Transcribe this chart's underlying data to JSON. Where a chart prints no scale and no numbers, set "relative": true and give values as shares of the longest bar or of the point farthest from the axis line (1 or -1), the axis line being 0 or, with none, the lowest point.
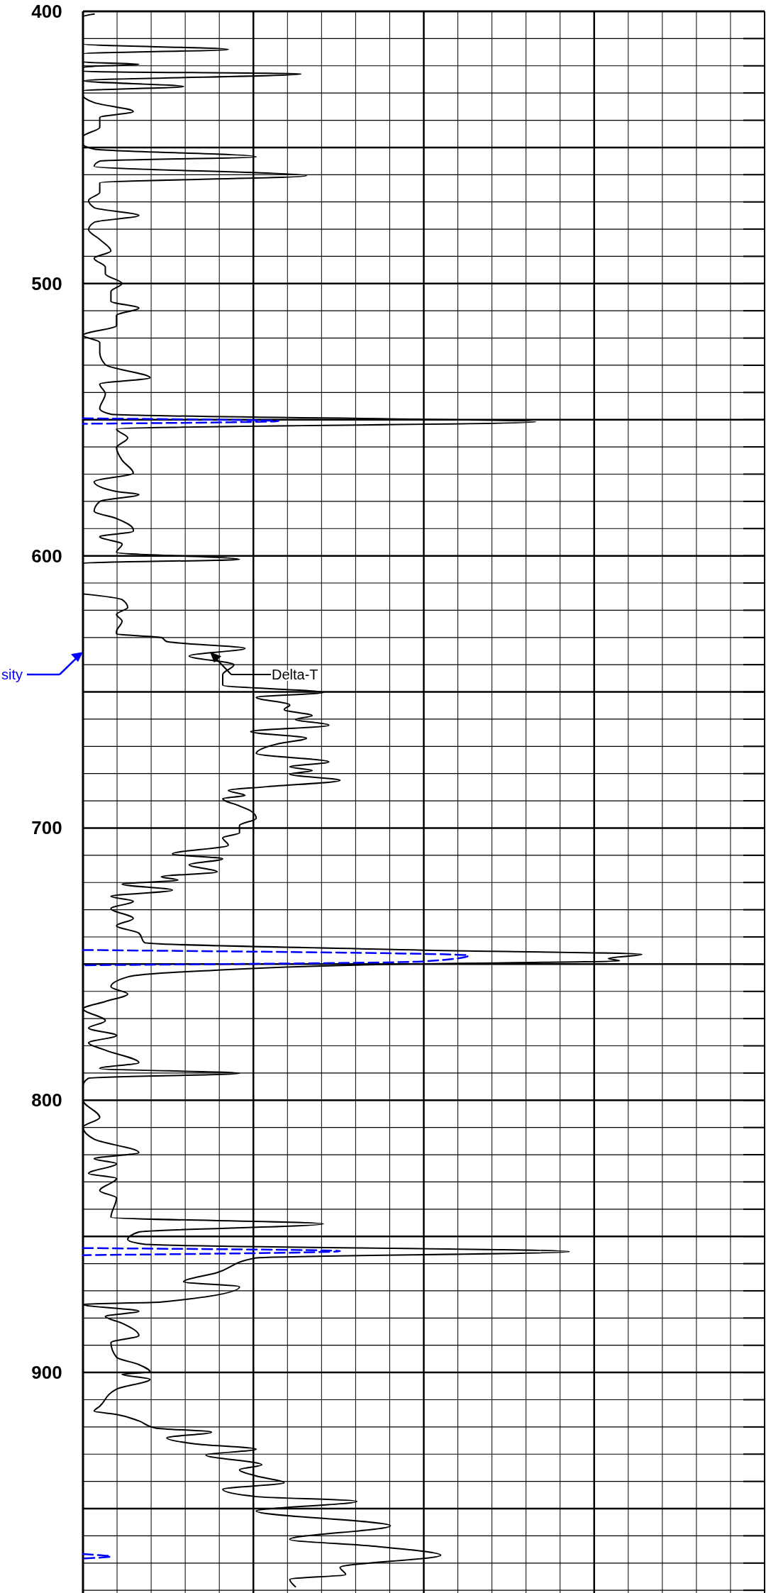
{
  "chart_data": {
    "type": "line",
    "orientation": "horizontal",
    "relative": true,
    "grid": true,
    "ylim": [
      981,
      400
    ],
    "yticks": [
      400,
      {
        "value": 410,
        "label": null
      },
      {
        "value": 420,
        "label": null
      },
      {
        "value": 430,
        "label": null
      },
      {
        "value": 440,
        "label": null
      },
      {
        "value": 450,
        "label": null
      },
      {
        "value": 460,
        "label": null
      },
      {
        "value": 470,
        "label": null
      },
      {
        "value": 480,
        "label": null
      },
      {
        "value": 490,
        "label": null
      },
      500,
      {
        "value": 510,
        "label": null
      },
      {
        "value": 520,
        "label": null
      },
      {
        "value": 530,
        "label": null
      },
      {
        "value": 540,
        "label": null
      },
      {
        "value": 550,
        "label": null
      },
      {
        "value": 560,
        "label": null
      },
      {
        "value": 570,
        "label": null
      },
      {
        "value": 580,
        "label": null
      },
      {
        "value": 590,
        "label": null
      },
      600,
      {
        "value": 610,
        "label": null
      },
      {
        "value": 620,
        "label": null
      },
      {
        "value": 630,
        "label": null
      },
      {
        "value": 640,
        "label": null
      },
      {
        "value": 650,
        "label": null
      },
      {
        "value": 660,
        "label": null
      },
      {
        "value": 670,
        "label": null
      },
      {
        "value": 680,
        "label": null
      },
      {
        "value": 690,
        "label": null
      },
      700,
      {
        "value": 710,
        "label": null
      },
      {
        "value": 720,
        "label": null
      },
      {
        "value": 730,
        "label": null
      },
      {
        "value": 740,
        "label": null
      },
      {
        "value": 750,
        "label": null
      },
      {
        "value": 760,
        "label": null
      },
      {
        "value": 770,
        "label": null
      },
      {
        "value": 780,
        "label": null
      },
      {
        "value": 790,
        "label": null
      },
      800,
      {
        "value": 810,
        "label": null
      },
      {
        "value": 820,
        "label": null
      },
      {
        "value": 830,
        "label": null
      },
      {
        "value": 840,
        "label": null
      },
      {
        "value": 850,
        "label": null
      },
      {
        "value": 860,
        "label": null
      },
      {
        "value": 870,
        "label": null
      },
      {
        "value": 880,
        "label": null
      },
      {
        "value": 890,
        "label": null
      },
      900,
      {
        "value": 910,
        "label": null
      },
      {
        "value": 920,
        "label": null
      },
      {
        "value": 930,
        "label": null
      },
      {
        "value": 940,
        "label": null
      },
      {
        "value": 950,
        "label": null
      },
      {
        "value": 960,
        "label": null
      },
      {
        "value": 970,
        "label": null
      },
      {
        "value": 980,
        "label": null
      }
    ],
    "series": [
      {
        "name": "Delta-T",
        "color": "#000000",
        "line_style": "solid",
        "x": [
          401,
          402,
          412,
          414,
          415.6,
          418.6,
          419.4,
          420.5,
          422,
          423,
          425.5,
          427.6,
          429.2,
          430.8,
          433.5,
          436.8,
          439,
          442.6,
          446,
          448.8,
          450.6,
          453.4,
          455,
          456.9,
          460.4,
          463,
          466.5,
          469.4,
          472.1,
          475,
          477.5,
          480.2,
          483.8,
          488,
          490.7,
          494,
          496.4,
          500,
          502.9,
          506.5,
          509,
          511.7,
          515.4,
          519,
          521.6,
          525.2,
          529.8,
          534.6,
          536.9,
          540.5,
          545.9,
          548,
          550.8,
          553.4,
          556.7,
          560.3,
          564.9,
          569.6,
          572.8,
          576.4,
          577.5,
          580,
          583.6,
          586.3,
          590.4,
          591,
          593,
          595.7,
          598.7,
          601.3,
          602.7,
          608,
          611,
          614,
          616.1,
          619,
          621.5,
          624,
          627.8,
          628.7,
          630,
          631.5,
          634,
          636.8,
          640,
          643.6,
          647.5,
          650.2,
          652,
          654.8,
          656.5,
          658.7,
          660.1,
          662.2,
          664.6,
          667,
          669,
          672.6,
          675.7,
          677.5,
          678.9,
          680.2,
          682.5,
          684.8,
          686.2,
          688,
          689.2,
          691.9,
          693.7,
          696.4,
          699.1,
          701.8,
          703.6,
          706.3,
          709.5,
          711.3,
          713.5,
          716.1,
          717.9,
          719.1,
          720.6,
          722.8,
          725.1,
          726.9,
          729.6,
          733.2,
          735.9,
          738.6,
          742.1,
          744.8,
          746.4,
          747.9,
          748.8,
          749.9,
          752.5,
          754.7,
          758.3,
          761,
          763.7,
          766.4,
          770.8,
          773.5,
          776.2,
          778.9,
          781.6,
          786.2,
          788.3,
          790.1,
          791.9,
          794.6,
          800,
          806.3,
          809.9,
          814.3,
          819.2,
          821.5,
          823.3,
          826.9,
          828.7,
          833.2,
          835.9,
          843,
          845.4,
          848.4,
          851.1,
          852.9,
          855.6,
          857.9,
          863.3,
          866.7,
          868.5,
          874.1,
          875,
          877.5,
          879.4,
          881.9,
          886.4,
          889,
          894.4,
          897.1,
          899.8,
          900.7,
          902.5,
          906.1,
          912.4,
          914.2,
          915.4,
          917.8,
          920.4,
          921.9,
          924,
          926.2,
          928.2,
          930.3,
          933.9,
          935.7,
          938,
          940.5,
          942.9,
          945.6,
          947.3,
          950.9,
          956.3,
          961.3,
          963.8,
          967.1,
          971.6,
          974.2,
          976,
          978.7
        ],
        "values": [
          0.02,
          0,
          0,
          0.26,
          0,
          0,
          0.1,
          0,
          0,
          0.39,
          0,
          0.18,
          0,
          0,
          0.02,
          0.09,
          0.03,
          0.03,
          0,
          0,
          0.02,
          0.31,
          0.03,
          0.02,
          0.4,
          0.03,
          0.03,
          0.01,
          0.02,
          0.1,
          0.02,
          0.01,
          0.03,
          0.05,
          0.02,
          0.04,
          0.04,
          0.07,
          0.05,
          0.05,
          0.1,
          0.06,
          0.06,
          0,
          0.03,
          0.03,
          0.04,
          0.12,
          0.03,
          0.04,
          0.03,
          0.05,
          0.81,
          0.06,
          0.08,
          0.06,
          0.07,
          0.09,
          0.02,
          0.06,
          0.1,
          0.03,
          0.02,
          0.06,
          0.09,
          0.09,
          0.03,
          0.07,
          0.06,
          0.28,
          0,
          0,
          null,
          0,
          0.07,
          0.08,
          0.06,
          0.07,
          0.06,
          0.06,
          0.14,
          0.15,
          0.29,
          0.19,
          0.27,
          0.25,
          0.25,
          0.43,
          0.31,
          0.37,
          0.36,
          0.41,
          0.38,
          0.44,
          0.3,
          0.4,
          0.35,
          0.31,
          0.44,
          0.37,
          0.41,
          0.37,
          0.46,
          0.33,
          0.26,
          0.29,
          0.25,
          0.28,
          0.3,
          0.31,
          0.28,
          0.28,
          0.25,
          0.26,
          0.16,
          0.25,
          0.19,
          0.24,
          0.14,
          0.17,
          0.07,
          0.16,
          0.05,
          0.09,
          0.05,
          0.09,
          0.06,
          0.1,
          0.11,
          0.6,
          1,
          0.94,
          0.96,
          0.59,
          0.21,
          0.08,
          0.05,
          0.08,
          0.04,
          0,
          0.04,
          0.01,
          0.06,
          0.01,
          0.04,
          0.1,
          0.03,
          0.28,
          0.01,
          0,
          0,
          0.03,
          0,
          0.02,
          0.1,
          0.02,
          0.06,
          0.01,
          0.06,
          0.03,
          0.06,
          0.05,
          0.43,
          0.1,
          0.08,
          0.11,
          0.87,
          0.31,
          0.24,
          0.18,
          0.28,
          0.14,
          0,
          0.1,
          0.04,
          0.07,
          0.1,
          0.05,
          0.06,
          0.1,
          0.12,
          0.07,
          0.12,
          0.06,
          0.03,
          0.02,
          0.06,
          0.1,
          0.13,
          0.23,
          0.15,
          0.2,
          0.31,
          0.22,
          0.32,
          0.28,
          0.31,
          0.36,
          0.25,
          0.31,
          0.49,
          0.31,
          0.55,
          0.37,
          0.52,
          0.64,
          0.46,
          0.47,
          0.37,
          0.38
        ]
      },
      {
        "name": "sity",
        "color": "#0000ff",
        "line_style": "dashed",
        "x": [
          549.5,
          550.5,
          551.5,
          600,
          744.8,
          746.8,
          749,
          750.4,
          800,
          854.3,
          855.4,
          856.9,
          900,
          966.7,
          967.6,
          968.3
        ],
        "values": [
          0,
          0.35,
          0,
          null,
          0,
          0.69,
          0.61,
          0,
          null,
          0,
          0.46,
          0,
          null,
          0,
          0.05,
          0
        ]
      }
    ]
  }
}
